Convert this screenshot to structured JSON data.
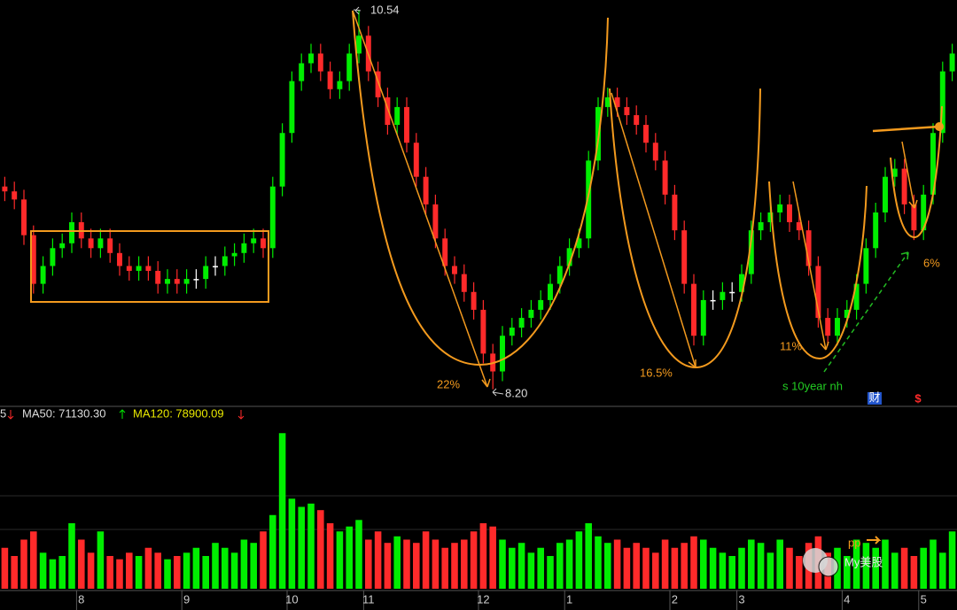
{
  "chart_data": {
    "type": "candlestick",
    "xlim": [
      -0.5,
      99.5
    ],
    "ylim": [
      8.1,
      10.6
    ],
    "volume_lim": [
      0,
      330000
    ],
    "xticks": [
      {
        "value": 8,
        "label": "8"
      },
      {
        "value": 19,
        "label": "9"
      },
      {
        "value": 30,
        "label": "10"
      },
      {
        "value": 38,
        "label": "11"
      },
      {
        "value": 50,
        "label": "12"
      },
      {
        "value": 59,
        "label": "1"
      },
      {
        "value": 70,
        "label": "2"
      },
      {
        "value": 77,
        "label": "3"
      },
      {
        "value": 88,
        "label": "4"
      },
      {
        "value": 96,
        "label": "5"
      }
    ],
    "up_color": "#00ee00",
    "down_color": "#ff2a2a",
    "flat_color": "#ffffff",
    "open": [
      9.45,
      9.42,
      9.37,
      9.15,
      8.85,
      8.96,
      9.07,
      9.1,
      9.23,
      9.13,
      9.07,
      9.13,
      9.04,
      8.96,
      8.93,
      8.96,
      8.93,
      8.85,
      8.88,
      8.85,
      8.88,
      8.88,
      8.96,
      8.96,
      9.02,
      9.04,
      9.1,
      9.13,
      9.07,
      9.45,
      9.78,
      10.1,
      10.21,
      10.27,
      10.16,
      10.05,
      10.1,
      10.27,
      10.38,
      10.16,
      10.0,
      9.83,
      9.94,
      9.72,
      9.51,
      9.34,
      9.13,
      8.96,
      8.91,
      8.8,
      8.69,
      8.42,
      8.31,
      8.53,
      8.58,
      8.64,
      8.69,
      8.75,
      8.85,
      8.96,
      9.07,
      9.13,
      9.61,
      9.94,
      10.0,
      9.94,
      9.89,
      9.83,
      9.72,
      9.61,
      9.4,
      9.18,
      8.85,
      8.53,
      8.75,
      8.75,
      8.8,
      8.8,
      8.91,
      9.18,
      9.23,
      9.29,
      9.34,
      9.23,
      9.18,
      8.96,
      8.64,
      8.53,
      8.64,
      8.69,
      8.85,
      9.07,
      9.29,
      9.51,
      9.56,
      9.34,
      9.18,
      9.4,
      9.78,
      10.16
    ],
    "high": [
      9.51,
      9.48,
      9.43,
      9.21,
      9.02,
      9.13,
      9.16,
      9.29,
      9.29,
      9.19,
      9.19,
      9.19,
      9.1,
      9.02,
      9.02,
      9.02,
      8.99,
      8.94,
      8.94,
      8.94,
      8.94,
      9.02,
      9.02,
      9.08,
      9.1,
      9.16,
      9.19,
      9.19,
      9.51,
      9.84,
      10.16,
      10.27,
      10.33,
      10.33,
      10.22,
      10.16,
      10.33,
      10.54,
      10.44,
      10.22,
      10.06,
      10.0,
      10.0,
      9.78,
      9.57,
      9.4,
      9.19,
      9.02,
      8.97,
      8.86,
      8.75,
      8.48,
      8.59,
      8.64,
      8.7,
      8.75,
      8.81,
      8.91,
      9.02,
      9.13,
      9.19,
      9.67,
      10.0,
      10.06,
      10.06,
      10.0,
      9.95,
      9.89,
      9.78,
      9.67,
      9.46,
      9.24,
      8.91,
      8.81,
      8.81,
      8.86,
      8.86,
      8.97,
      9.24,
      9.29,
      9.35,
      9.4,
      9.4,
      9.29,
      9.24,
      9.02,
      8.7,
      8.7,
      8.75,
      8.91,
      9.13,
      9.35,
      9.57,
      9.62,
      9.62,
      9.4,
      9.46,
      9.84,
      10.22,
      10.33
    ],
    "low": [
      9.36,
      9.31,
      9.09,
      8.79,
      8.79,
      8.9,
      9.01,
      9.04,
      9.07,
      9.01,
      9.01,
      8.98,
      8.9,
      8.87,
      8.87,
      8.87,
      8.79,
      8.79,
      8.79,
      8.79,
      8.82,
      8.82,
      8.9,
      8.9,
      8.96,
      8.98,
      9.04,
      9.01,
      9.01,
      9.39,
      9.72,
      10.04,
      10.15,
      10.1,
      9.99,
      9.99,
      10.04,
      10.21,
      10.1,
      9.94,
      9.77,
      9.77,
      9.66,
      9.45,
      9.28,
      9.07,
      8.9,
      8.85,
      8.74,
      8.63,
      8.36,
      8.2,
      8.25,
      8.47,
      8.52,
      8.58,
      8.63,
      8.69,
      8.79,
      8.9,
      9.01,
      9.07,
      9.55,
      9.88,
      9.88,
      9.83,
      9.77,
      9.66,
      9.55,
      9.34,
      9.12,
      8.79,
      8.47,
      8.47,
      8.69,
      8.69,
      8.74,
      8.74,
      8.85,
      9.12,
      9.17,
      9.23,
      9.17,
      9.12,
      8.9,
      8.58,
      8.47,
      8.47,
      8.58,
      8.63,
      8.79,
      9.01,
      9.23,
      9.45,
      9.28,
      9.12,
      9.12,
      9.34,
      9.72,
      10.1
    ],
    "close": [
      9.42,
      9.37,
      9.15,
      8.85,
      8.96,
      9.07,
      9.1,
      9.23,
      9.13,
      9.07,
      9.13,
      9.04,
      8.96,
      8.93,
      8.96,
      8.93,
      8.85,
      8.88,
      8.85,
      8.88,
      8.88,
      8.96,
      8.96,
      9.02,
      9.04,
      9.1,
      9.13,
      9.07,
      9.45,
      9.78,
      10.1,
      10.21,
      10.27,
      10.16,
      10.05,
      10.1,
      10.27,
      10.38,
      10.16,
      10.0,
      9.83,
      9.94,
      9.72,
      9.51,
      9.34,
      9.13,
      8.96,
      8.91,
      8.8,
      8.69,
      8.42,
      8.31,
      8.53,
      8.58,
      8.64,
      8.69,
      8.75,
      8.85,
      8.96,
      9.07,
      9.13,
      9.61,
      9.94,
      10.0,
      9.94,
      9.89,
      9.83,
      9.72,
      9.61,
      9.4,
      9.18,
      8.85,
      8.53,
      8.75,
      8.75,
      8.8,
      8.8,
      8.91,
      9.18,
      9.23,
      9.29,
      9.34,
      9.23,
      9.18,
      8.96,
      8.64,
      8.53,
      8.64,
      8.69,
      8.85,
      9.07,
      9.29,
      9.51,
      9.56,
      9.34,
      9.18,
      9.4,
      9.78,
      10.16,
      10.27
    ],
    "volume": [
      82500,
      66000,
      99000,
      115500,
      72600,
      59400,
      66000,
      132000,
      99000,
      72600,
      115500,
      66000,
      59400,
      72600,
      66000,
      82500,
      72600,
      59400,
      66000,
      72600,
      82500,
      66000,
      92400,
      82500,
      72600,
      99000,
      92400,
      115500,
      148500,
      313500,
      181500,
      165000,
      171600,
      158400,
      132000,
      115500,
      125400,
      138600,
      99000,
      115500,
      92400,
      105600,
      99000,
      92400,
      115500,
      99000,
      82500,
      92400,
      99000,
      115500,
      132000,
      125400,
      99000,
      82500,
      92400,
      72600,
      82500,
      66000,
      92400,
      99000,
      115500,
      132000,
      105600,
      92400,
      99000,
      82500,
      92400,
      82500,
      72600,
      99000,
      82500,
      92400,
      105600,
      99000,
      82500,
      72600,
      66000,
      82500,
      99000,
      92400,
      72600,
      99000,
      82500,
      66000,
      92400,
      105600,
      72600,
      82500,
      66000,
      99000,
      92400,
      82500,
      99000,
      72600,
      82500,
      66000,
      82500,
      99000,
      72600,
      115500
    ],
    "annotations": [
      "10.54",
      "8.20",
      "22%",
      "16.5%",
      "11%",
      "6%",
      "s 10year nh",
      "pp"
    ],
    "indicator_legend": [
      "5",
      "MA50: 71130.30",
      "MA120: 78900.09"
    ],
    "badges": [
      "财",
      "$"
    ],
    "watermark": "My美股"
  }
}
